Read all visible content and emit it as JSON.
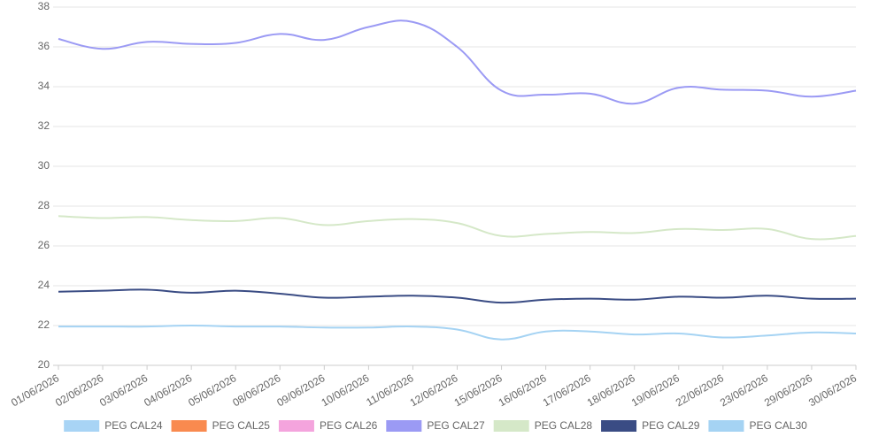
{
  "chart_data": {
    "type": "line",
    "categories": [
      "01/06/2026",
      "02/06/2026",
      "03/06/2026",
      "04/06/2026",
      "05/06/2026",
      "08/06/2026",
      "09/06/2026",
      "10/06/2026",
      "11/06/2026",
      "12/06/2026",
      "15/06/2026",
      "16/06/2026",
      "17/06/2026",
      "18/06/2026",
      "19/06/2026",
      "22/06/2026",
      "23/06/2026",
      "29/06/2026",
      "30/06/2026"
    ],
    "series": [
      {
        "name": "PEG CAL24",
        "color": "#a8d4f5",
        "values": [
          null,
          null,
          null,
          null,
          null,
          null,
          null,
          null,
          null,
          null,
          null,
          null,
          null,
          null,
          null,
          null,
          null,
          null,
          null
        ]
      },
      {
        "name": "PEG CAL25",
        "color": "#f98a4f",
        "values": [
          null,
          null,
          null,
          null,
          null,
          null,
          null,
          null,
          null,
          null,
          null,
          null,
          null,
          null,
          null,
          null,
          null,
          null,
          null
        ]
      },
      {
        "name": "PEG CAL26",
        "color": "#f4a4dd",
        "values": [
          null,
          null,
          null,
          null,
          null,
          null,
          null,
          null,
          null,
          null,
          null,
          null,
          null,
          null,
          null,
          null,
          null,
          null,
          null
        ]
      },
      {
        "name": "PEG CAL27",
        "color": "#9b9af4",
        "values": [
          36.4,
          35.9,
          36.25,
          36.15,
          36.2,
          36.65,
          36.35,
          37.0,
          37.25,
          36.0,
          33.8,
          33.6,
          33.65,
          33.15,
          33.95,
          33.85,
          33.8,
          33.5,
          33.8
        ]
      },
      {
        "name": "PEG CAL28",
        "color": "#d5e8c8",
        "values": [
          27.5,
          27.4,
          27.45,
          27.3,
          27.25,
          27.4,
          27.05,
          27.25,
          27.35,
          27.15,
          26.5,
          26.6,
          26.7,
          26.65,
          26.85,
          26.8,
          26.85,
          26.35,
          26.5
        ]
      },
      {
        "name": "PEG CAL29",
        "color": "#3a4c84",
        "values": [
          23.7,
          23.75,
          23.8,
          23.65,
          23.75,
          23.6,
          23.4,
          23.45,
          23.5,
          23.4,
          23.15,
          23.3,
          23.35,
          23.3,
          23.45,
          23.4,
          23.5,
          23.35,
          23.35
        ]
      },
      {
        "name": "PEG CAL30",
        "color": "#a5d3f3",
        "values": [
          21.95,
          21.95,
          21.95,
          22.0,
          21.95,
          21.95,
          21.9,
          21.9,
          21.95,
          21.8,
          21.3,
          21.7,
          21.7,
          21.55,
          21.6,
          21.4,
          21.5,
          21.65,
          21.6
        ]
      }
    ],
    "ylim": [
      20,
      38
    ],
    "yticks": [
      20,
      22,
      24,
      26,
      28,
      30,
      32,
      34,
      36,
      38
    ],
    "grid": true,
    "legend": "bottom"
  }
}
